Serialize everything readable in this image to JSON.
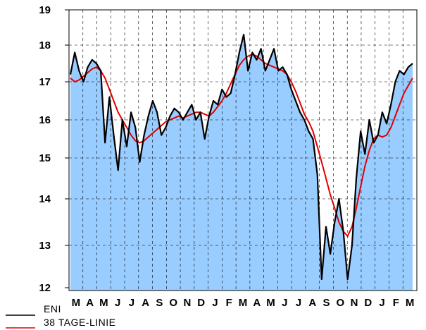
{
  "chart_data": {
    "type": "line",
    "title": "",
    "xlabel": "",
    "ylabel": "",
    "ylim": [
      12,
      19
    ],
    "y_ticks": [
      12,
      13,
      14,
      15,
      16,
      17,
      18,
      19
    ],
    "grid": true,
    "legend_position": "bottom-left",
    "x_ticks": [
      "M",
      "A",
      "M",
      "J",
      "J",
      "A",
      "S",
      "O",
      "N",
      "D",
      "J",
      "F",
      "M",
      "A",
      "M",
      "J",
      "J",
      "A",
      "S",
      "O",
      "N",
      "D",
      "J",
      "F",
      "M"
    ],
    "colors": {
      "area": "#99ccff",
      "series_eni": "#000000",
      "series_ma": "#e00000",
      "grid": "#000000"
    },
    "series": [
      {
        "name": "ENI",
        "values": [
          17.2,
          17.8,
          17.3,
          17.0,
          17.4,
          17.6,
          17.5,
          17.3,
          15.4,
          16.6,
          15.6,
          14.7,
          16.0,
          15.3,
          16.2,
          15.8,
          14.9,
          15.6,
          16.1,
          16.5,
          16.2,
          15.6,
          15.8,
          16.1,
          16.3,
          16.2,
          16.0,
          16.2,
          16.4,
          16.0,
          16.2,
          15.5,
          16.1,
          16.5,
          16.4,
          16.8,
          16.6,
          16.7,
          17.2,
          17.8,
          18.3,
          17.3,
          17.8,
          17.6,
          17.9,
          17.3,
          17.6,
          17.9,
          17.3,
          17.4,
          17.2,
          16.8,
          16.5,
          16.2,
          16.0,
          15.7,
          15.5,
          14.6,
          12.2,
          13.4,
          12.8,
          13.5,
          14.0,
          13.3,
          12.2,
          13.0,
          14.5,
          15.7,
          15.1,
          16.0,
          15.4,
          15.6,
          16.2,
          15.9,
          16.4,
          17.0,
          17.3,
          17.2,
          17.4,
          17.5
        ]
      },
      {
        "name": "38 TAGE-LINIE",
        "values": [
          17.1,
          17.0,
          17.05,
          17.15,
          17.25,
          17.35,
          17.4,
          17.3,
          17.1,
          16.8,
          16.5,
          16.2,
          16.0,
          15.8,
          15.6,
          15.45,
          15.4,
          15.45,
          15.55,
          15.65,
          15.75,
          15.85,
          15.95,
          16.0,
          16.05,
          16.1,
          16.05,
          16.1,
          16.15,
          16.2,
          16.2,
          16.15,
          16.1,
          16.2,
          16.35,
          16.5,
          16.7,
          16.95,
          17.2,
          17.45,
          17.6,
          17.7,
          17.75,
          17.7,
          17.6,
          17.5,
          17.45,
          17.4,
          17.35,
          17.3,
          17.2,
          17.0,
          16.75,
          16.45,
          16.15,
          15.95,
          15.7,
          15.3,
          14.9,
          14.5,
          14.1,
          13.8,
          13.5,
          13.3,
          13.2,
          13.4,
          13.8,
          14.3,
          14.8,
          15.2,
          15.5,
          15.6,
          15.55,
          15.6,
          15.8,
          16.1,
          16.4,
          16.7,
          16.9,
          17.1
        ]
      }
    ]
  },
  "legend": {
    "items": [
      {
        "label": "ENI",
        "color": "#000000"
      },
      {
        "label": "38 TAGE-LINIE",
        "color": "#e00000"
      }
    ]
  }
}
